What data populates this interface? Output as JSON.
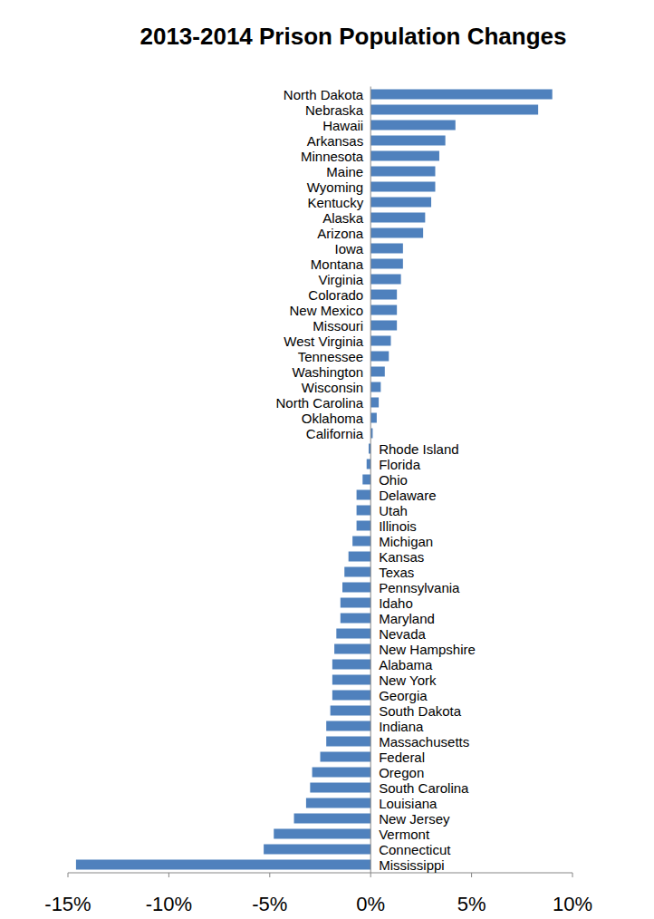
{
  "chart_data": {
    "type": "bar",
    "orientation": "horizontal",
    "title": "2013-2014 Prison Population Changes",
    "categories": [
      "North Dakota",
      "Nebraska",
      "Hawaii",
      "Arkansas",
      "Minnesota",
      "Maine",
      "Wyoming",
      "Kentucky",
      "Alaska",
      "Arizona",
      "Iowa",
      "Montana",
      "Virginia",
      "Colorado",
      "New Mexico",
      "Missouri",
      "West Virginia",
      "Tennessee",
      "Washington",
      "Wisconsin",
      "North Carolina",
      "Oklahoma",
      "California",
      "Rhode Island",
      "Florida",
      "Ohio",
      "Delaware",
      "Utah",
      "Illinois",
      "Michigan",
      "Kansas",
      "Texas",
      "Pennsylvania",
      "Idaho",
      "Maryland",
      "Nevada",
      "New Hampshire",
      "Alabama",
      "New York",
      "Georgia",
      "South Dakota",
      "Indiana",
      "Massachusetts",
      "Federal",
      "Oregon",
      "South Carolina",
      "Louisiana",
      "New Jersey",
      "Vermont",
      "Connecticut",
      "Mississippi"
    ],
    "values": [
      9.0,
      8.3,
      4.2,
      3.7,
      3.4,
      3.2,
      3.2,
      3.0,
      2.7,
      2.6,
      1.6,
      1.6,
      1.5,
      1.3,
      1.3,
      1.3,
      1.0,
      0.9,
      0.7,
      0.5,
      0.4,
      0.3,
      0.1,
      -0.1,
      -0.2,
      -0.4,
      -0.7,
      -0.7,
      -0.7,
      -0.9,
      -1.1,
      -1.3,
      -1.4,
      -1.5,
      -1.5,
      -1.7,
      -1.8,
      -1.9,
      -1.9,
      -1.9,
      -2.0,
      -2.2,
      -2.2,
      -2.5,
      -2.9,
      -3.0,
      -3.2,
      -3.8,
      -4.8,
      -5.3,
      -14.6
    ],
    "color": "#4f81bd",
    "xlim": [
      -15,
      10
    ],
    "xticks": [
      {
        "value": -15,
        "label": "-15%"
      },
      {
        "value": -10,
        "label": "-10%"
      },
      {
        "value": -5,
        "label": "-5%"
      },
      {
        "value": 0,
        "label": "0%"
      },
      {
        "value": 5,
        "label": "5%"
      },
      {
        "value": 10,
        "label": "10%"
      }
    ],
    "grid": false
  }
}
